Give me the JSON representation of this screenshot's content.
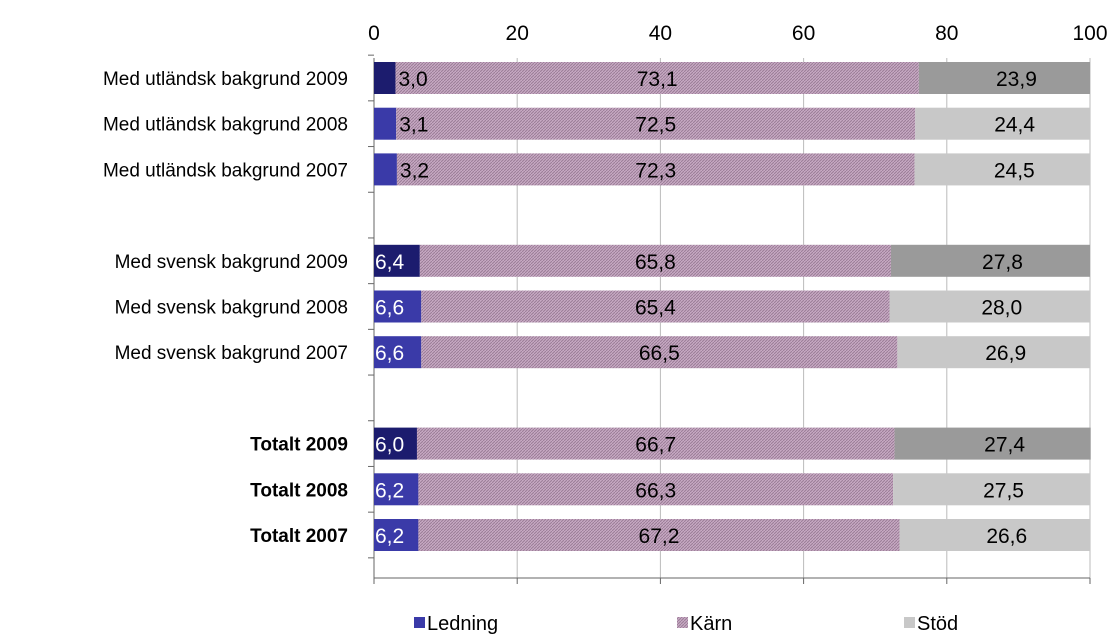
{
  "chart_data": {
    "type": "bar",
    "orientation": "horizontal",
    "stacked": true,
    "xlim": [
      0,
      100
    ],
    "x_ticks": [
      0,
      20,
      40,
      60,
      80,
      100
    ],
    "grid": true,
    "legend_position": "bottom",
    "categories": [
      "Med utländsk bakgrund 2009",
      "Med utländsk bakgrund 2008",
      "Med utländsk bakgrund 2007",
      "",
      "Med svensk bakgrund 2009",
      "Med svensk bakgrund 2008",
      "Med svensk bakgrund 2007",
      "",
      "Totalt 2009",
      "Totalt 2008",
      "Totalt 2007"
    ],
    "category_bold": [
      false,
      false,
      false,
      false,
      false,
      false,
      false,
      false,
      true,
      true,
      true
    ],
    "series": [
      {
        "name": "Ledning",
        "values": [
          3.0,
          3.1,
          3.2,
          null,
          6.4,
          6.6,
          6.6,
          null,
          6.0,
          6.2,
          6.2
        ],
        "labels": [
          "3,0",
          "3,1",
          "3,2",
          "",
          "6,4",
          "6,6",
          "6,6",
          "",
          "6,0",
          "6,2",
          "6,2"
        ]
      },
      {
        "name": "Kärn",
        "values": [
          73.1,
          72.5,
          72.3,
          null,
          65.8,
          65.4,
          66.5,
          null,
          66.7,
          66.3,
          67.2
        ],
        "labels": [
          "73,1",
          "72,5",
          "72,3",
          "",
          "65,8",
          "65,4",
          "66,5",
          "",
          "66,7",
          "66,3",
          "67,2"
        ]
      },
      {
        "name": "Stöd",
        "values": [
          23.9,
          24.4,
          24.5,
          null,
          27.8,
          28.0,
          26.9,
          null,
          27.4,
          27.5,
          26.6
        ],
        "labels": [
          "23,9",
          "24,4",
          "24,5",
          "",
          "27,8",
          "28,0",
          "26,9",
          "",
          "27,4",
          "27,5",
          "26,6"
        ]
      }
    ],
    "colors": {
      "ledning_2009": "#1c1c6e",
      "ledning_other": "#3a3aa8",
      "karn": "#b99ab6",
      "stod_2009": "#9a9a9a",
      "stod_other": "#c8c8c8",
      "grid": "#bbbbbb",
      "axis": "#666666"
    }
  }
}
